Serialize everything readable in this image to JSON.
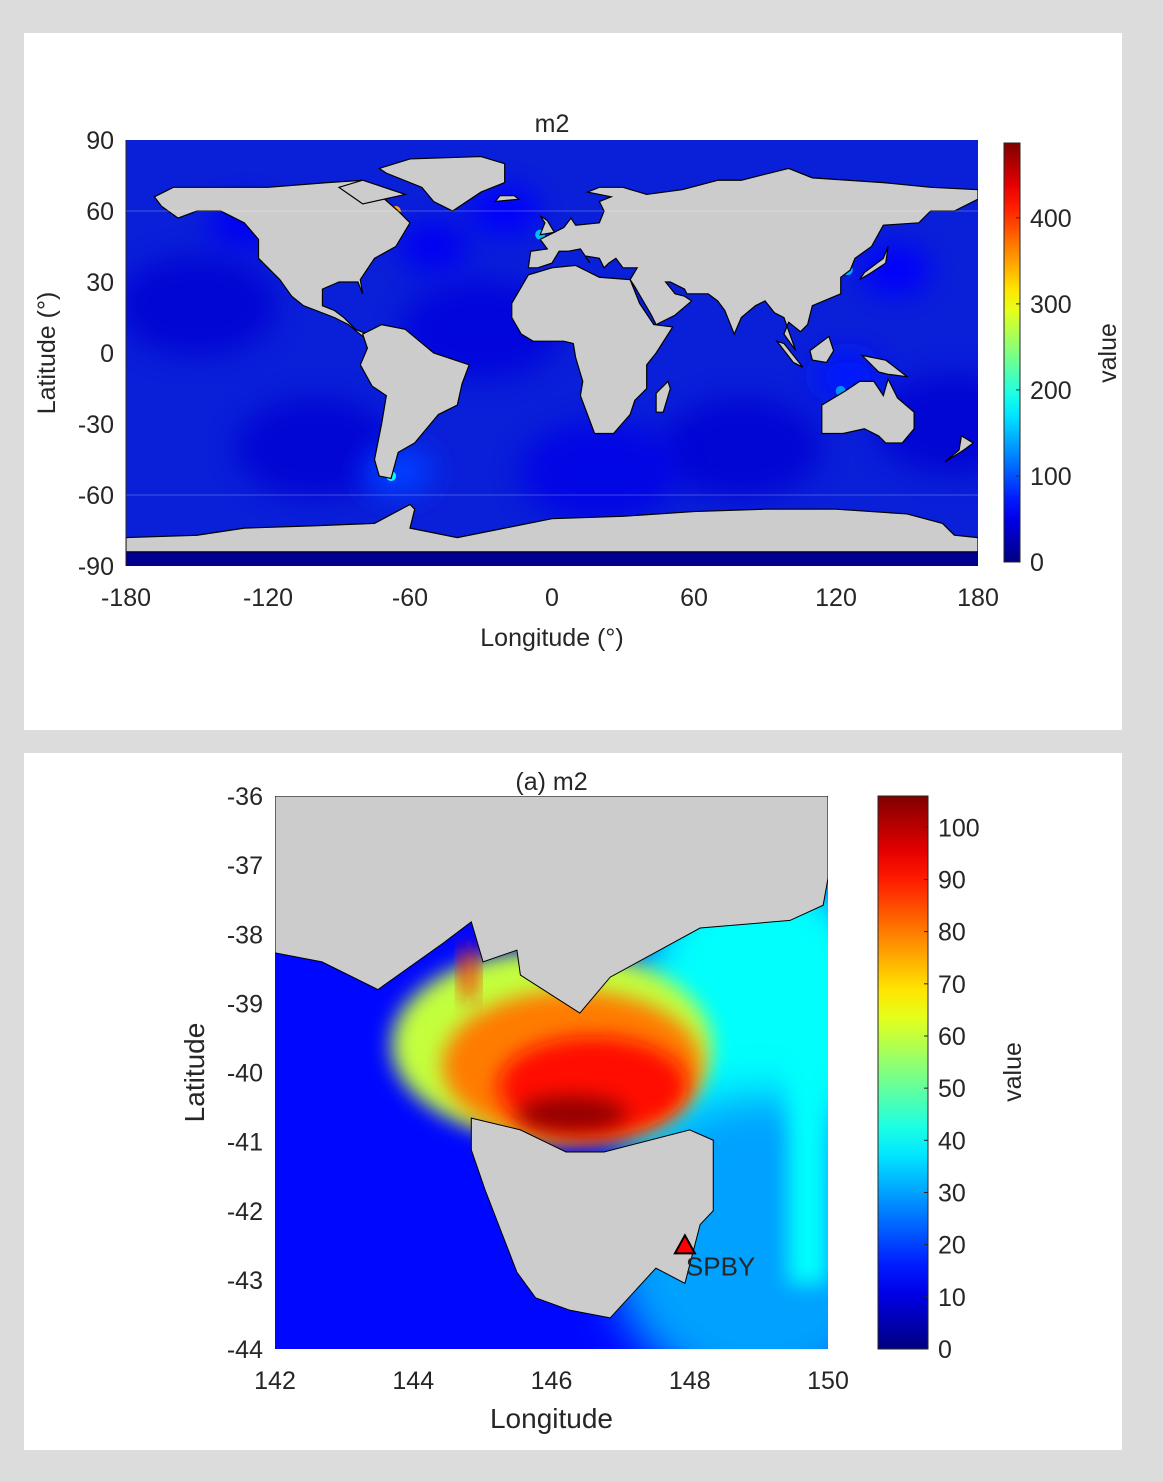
{
  "chart_data": [
    {
      "type": "heatmap",
      "title": "m2",
      "xlabel": "Longitude (°)",
      "ylabel": "Latitude (°)",
      "xlim": [
        -180,
        180
      ],
      "ylim": [
        -90,
        90
      ],
      "xticks": [
        "-180",
        "-120",
        "-60",
        "0",
        "60",
        "120",
        "180"
      ],
      "yticks": [
        "90",
        "60",
        "30",
        "0",
        "-30",
        "-60",
        "-90"
      ],
      "colorbar": {
        "label": "value",
        "range": [
          0,
          487
        ],
        "ticks": [
          "0",
          "100",
          "200",
          "300",
          "400"
        ],
        "colormap": "jet"
      },
      "land_color": "#cccccc",
      "hotspots": [
        {
          "lon": -66,
          "lat": 60,
          "value": 350
        },
        {
          "lon": -68,
          "lat": -52,
          "value": 180
        },
        {
          "lon": -5,
          "lat": 50,
          "value": 150
        },
        {
          "lon": 125,
          "lat": 35,
          "value": 140
        },
        {
          "lon": 122,
          "lat": -16,
          "value": 130
        }
      ]
    },
    {
      "type": "heatmap",
      "title": "(a) m2",
      "xlabel": "Longitude",
      "ylabel": "Latitude",
      "xlim": [
        142,
        150
      ],
      "ylim": [
        -44,
        -36
      ],
      "xticks": [
        "142",
        "144",
        "146",
        "148",
        "150"
      ],
      "yticks": [
        "-36",
        "-37",
        "-38",
        "-39",
        "-40",
        "-41",
        "-42",
        "-43",
        "-44"
      ],
      "colorbar": {
        "label": "value",
        "range": [
          0,
          106
        ],
        "ticks": [
          "0",
          "10",
          "20",
          "30",
          "40",
          "50",
          "60",
          "70",
          "80",
          "90",
          "100"
        ],
        "colormap": "jet"
      },
      "land_color": "#cccccc",
      "station": {
        "name": "SPBY",
        "lon": 147.93,
        "lat": -42.5,
        "marker": "triangle",
        "color": "#ff0000"
      }
    }
  ]
}
